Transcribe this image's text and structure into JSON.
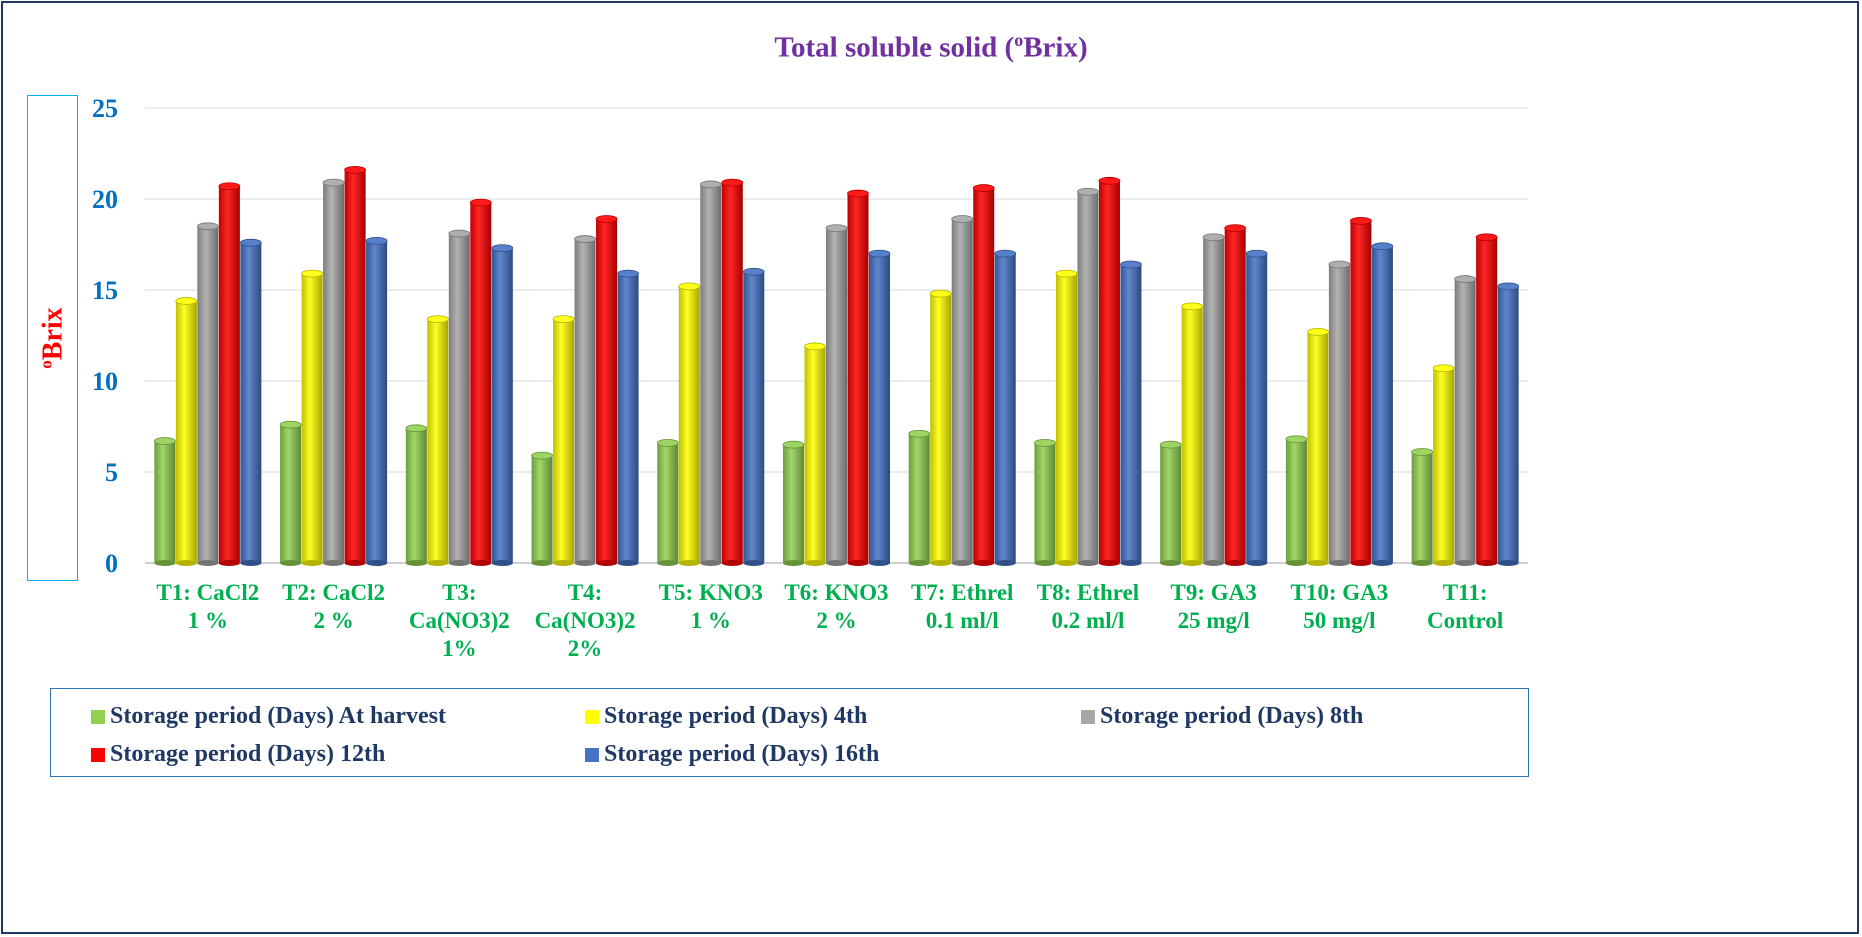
{
  "chart_data": {
    "type": "bar",
    "title_main": "Total soluble solid (",
    "title_sup": "o",
    "title_tail": "Brix)",
    "ylabel_sup": "o",
    "ylabel_main": "Brix",
    "ylim": [
      0,
      25
    ],
    "yticks": [
      0,
      5,
      10,
      15,
      20,
      25
    ],
    "grid": true,
    "legend_position": "bottom",
    "categories": [
      [
        "T1: CaCl2",
        "1 %"
      ],
      [
        "T2: CaCl2",
        "2 %"
      ],
      [
        "T3:",
        "Ca(NO3)2",
        "1%"
      ],
      [
        "T4:",
        "Ca(NO3)2",
        "2%"
      ],
      [
        "T5: KNO3",
        "1 %"
      ],
      [
        "T6: KNO3",
        "2 %"
      ],
      [
        "T7: Ethrel",
        "0.1 ml/l"
      ],
      [
        "T8: Ethrel",
        "0.2 ml/l"
      ],
      [
        "T9: GA3",
        "25 mg/l"
      ],
      [
        "T10: GA3",
        "50 mg/l"
      ],
      [
        "T11:",
        "Control"
      ]
    ],
    "series": [
      {
        "name": "Storage period (Days) At harvest",
        "color": "#92d050",
        "values": [
          6.7,
          7.6,
          7.4,
          5.9,
          6.6,
          6.5,
          7.1,
          6.6,
          6.5,
          6.8,
          6.1
        ]
      },
      {
        "name": "Storage period (Days) 4th",
        "color": "#ffff00",
        "values": [
          14.4,
          15.9,
          13.4,
          13.4,
          15.2,
          11.9,
          14.8,
          15.9,
          14.1,
          12.7,
          10.7
        ]
      },
      {
        "name": "Storage period (Days) 8th",
        "color": "#a6a6a6",
        "values": [
          18.5,
          20.9,
          18.1,
          17.8,
          20.8,
          18.4,
          18.9,
          20.4,
          17.9,
          16.4,
          15.6
        ]
      },
      {
        "name": "Storage period (Days) 12th",
        "color": "#ff0000",
        "values": [
          20.7,
          21.6,
          19.8,
          18.9,
          20.9,
          20.3,
          20.6,
          21.0,
          18.4,
          18.8,
          17.9
        ]
      },
      {
        "name": "Storage period (Days) 16th",
        "color": "#4472c4",
        "values": [
          17.6,
          17.7,
          17.3,
          15.9,
          16.0,
          17.0,
          17.0,
          16.4,
          17.0,
          17.4,
          15.2
        ]
      }
    ]
  }
}
